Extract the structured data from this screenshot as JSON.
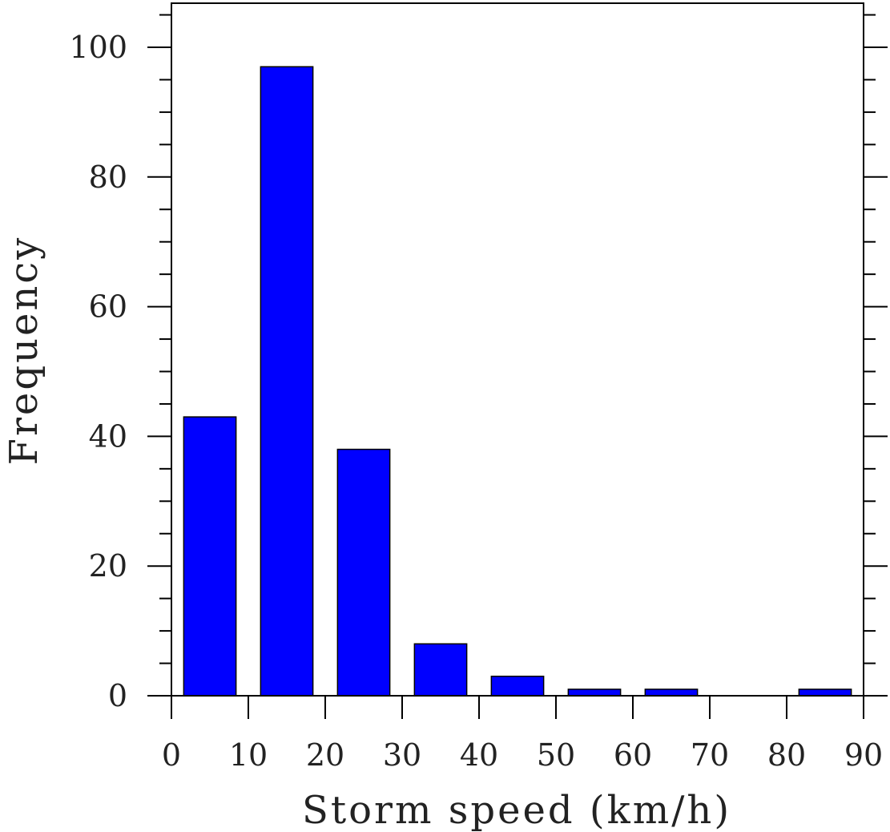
{
  "chart_data": {
    "type": "bar",
    "xlabel": "Storm speed (km/h)",
    "ylabel": "Frequency",
    "xlim": [
      0,
      90
    ],
    "ylim": [
      0,
      100
    ],
    "x_ticks": [
      0,
      10,
      20,
      30,
      40,
      50,
      60,
      70,
      80,
      90
    ],
    "y_ticks": [
      0,
      20,
      40,
      60,
      80,
      100
    ],
    "bins": [
      {
        "start": 0,
        "end": 10,
        "value": 43
      },
      {
        "start": 10,
        "end": 20,
        "value": 97
      },
      {
        "start": 20,
        "end": 30,
        "value": 38
      },
      {
        "start": 30,
        "end": 40,
        "value": 8
      },
      {
        "start": 40,
        "end": 50,
        "value": 3
      },
      {
        "start": 50,
        "end": 60,
        "value": 1
      },
      {
        "start": 60,
        "end": 70,
        "value": 1
      },
      {
        "start": 70,
        "end": 80,
        "value": 0
      },
      {
        "start": 80,
        "end": 90,
        "value": 1
      }
    ],
    "bar_color": "#0000ff",
    "grid": false
  }
}
